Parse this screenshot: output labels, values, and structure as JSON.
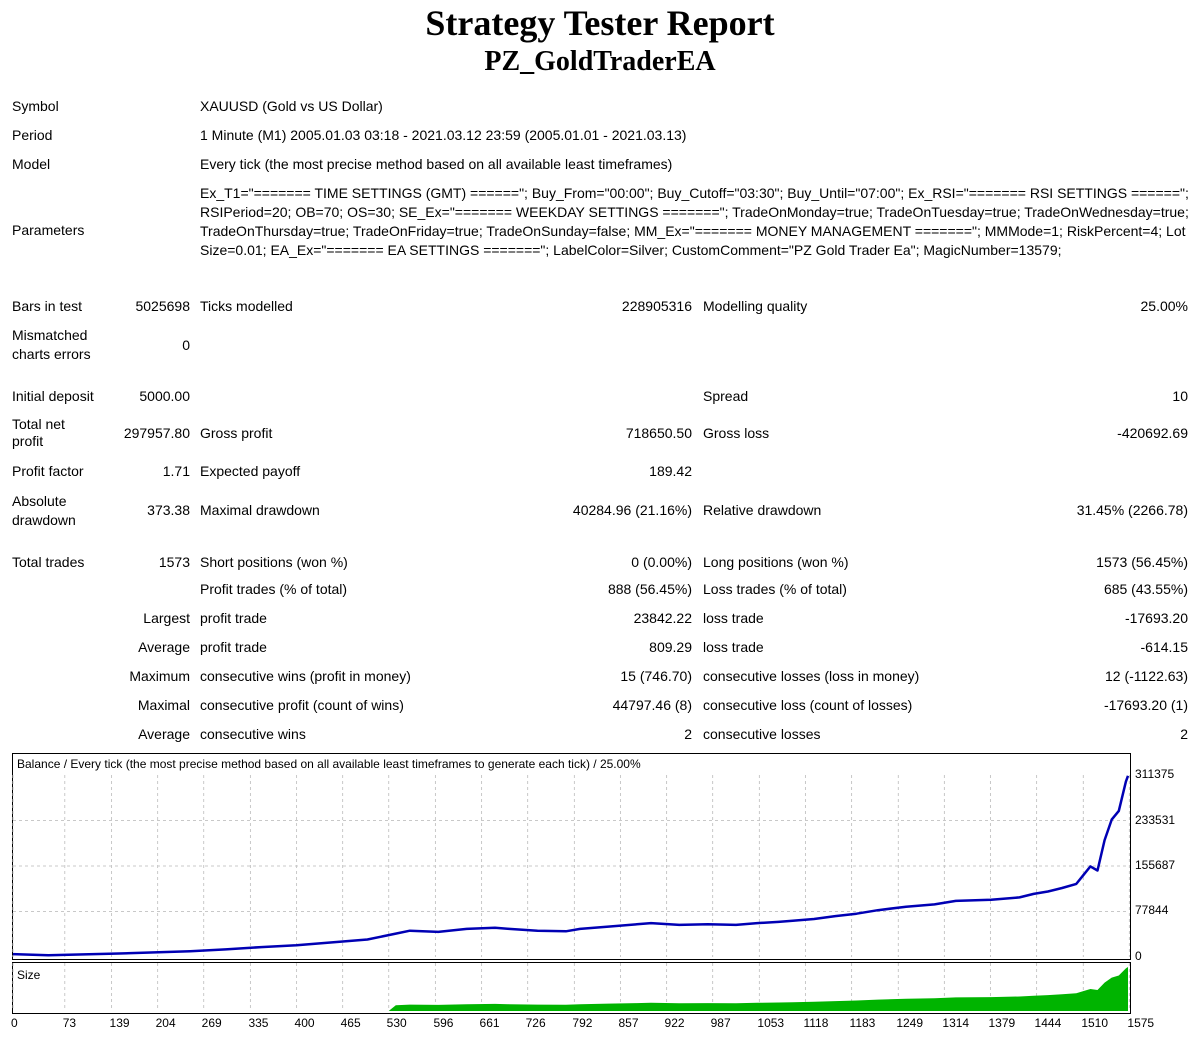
{
  "report": {
    "title": "Strategy Tester Report",
    "ea_name": "PZ_GoldTraderEA"
  },
  "settings": {
    "symbol_label": "Symbol",
    "symbol_value": "XAUUSD (Gold vs US Dollar)",
    "period_label": "Period",
    "period_value": "1 Minute (M1) 2005.01.03 03:18 - 2021.03.12 23:59 (2005.01.01 - 2021.03.13)",
    "model_label": "Model",
    "model_value": "Every tick (the most precise method based on all available least timeframes)",
    "parameters_label": "Parameters",
    "parameters_value": "Ex_T1=\"======= TIME SETTINGS (GMT) ======\"; Buy_From=\"00:00\"; Buy_Cutoff=\"03:30\"; Buy_Until=\"07:00\"; Ex_RSI=\"======= RSI SETTINGS ======\"; RSIPeriod=20; OB=70; OS=30; SE_Ex=\"======= WEEKDAY SETTINGS =======\"; TradeOnMonday=true; TradeOnTuesday=true; TradeOnWednesday=true; TradeOnThursday=true; TradeOnFriday=true; TradeOnSunday=false; MM_Ex=\"======= MONEY MANAGEMENT =======\"; MMMode=1; RiskPercent=4; LotSize=0.01; EA_Ex=\"======= EA SETTINGS =======\"; LabelColor=Silver; CustomComment=\"PZ Gold Trader Ea\"; MagicNumber=13579;"
  },
  "stats": {
    "bars_label": "Bars in test",
    "bars_value": "5025698",
    "ticks_label": "Ticks modelled",
    "ticks_value": "228905316",
    "quality_label": "Modelling quality",
    "quality_value": "25.00%",
    "mismatch_label": "Mismatched charts errors",
    "mismatch_value": "0",
    "deposit_label": "Initial deposit",
    "deposit_value": "5000.00",
    "spread_label": "Spread",
    "spread_value": "10",
    "netprofit_label": "Total net profit",
    "netprofit_value": "297957.80",
    "grossprofit_label": "Gross profit",
    "grossprofit_value": "718650.50",
    "grossloss_label": "Gross loss",
    "grossloss_value": "-420692.69",
    "pf_label": "Profit factor",
    "pf_value": "1.71",
    "payoff_label": "Expected payoff",
    "payoff_value": "189.42",
    "absdd_label": "Absolute drawdown",
    "absdd_value": "373.38",
    "maxdd_label": "Maximal drawdown",
    "maxdd_value": "40284.96 (21.16%)",
    "reldd_label": "Relative drawdown",
    "reldd_value": "31.45% (2266.78)",
    "trades_label": "Total trades",
    "trades_value": "1573",
    "short_label": "Short positions (won %)",
    "short_value": "0 (0.00%)",
    "long_label": "Long positions (won %)",
    "long_value": "1573 (56.45%)",
    "ptrades_label": "Profit trades (% of total)",
    "ptrades_value": "888 (56.45%)",
    "ltrades_label": "Loss trades (% of total)",
    "ltrades_value": "685 (43.55%)",
    "largest_label": "Largest",
    "largest_profit_label": "profit trade",
    "largest_profit_value": "23842.22",
    "largest_loss_label": "loss trade",
    "largest_loss_value": "-17693.20",
    "average_label": "Average",
    "average_profit_label": "profit trade",
    "average_profit_value": "809.29",
    "average_loss_label": "loss trade",
    "average_loss_value": "-614.15",
    "maximum_label": "Maximum",
    "max_wins_label": "consecutive wins (profit in money)",
    "max_wins_value": "15 (746.70)",
    "max_losses_label": "consecutive losses (loss in money)",
    "max_losses_value": "12 (-1122.63)",
    "maximal_label": "Maximal",
    "maxl_profit_label": "consecutive profit (count of wins)",
    "maxl_profit_value": "44797.46 (8)",
    "maxl_loss_label": "consecutive loss (count of losses)",
    "maxl_loss_value": "-17693.20 (1)",
    "average2_label": "Average",
    "avg_wins_label": "consecutive wins",
    "avg_wins_value": "2",
    "avg_losses_label": "consecutive losses",
    "avg_losses_value": "2"
  },
  "chart_data": {
    "type": "line",
    "title": "Balance / Every tick (the most precise method based on all available least timeframes to generate each tick) / 25.00%",
    "y_ticks": [
      "311375",
      "233531",
      "155687",
      "77844",
      "0"
    ],
    "x_ticks": [
      "0",
      "73",
      "139",
      "204",
      "269",
      "335",
      "400",
      "465",
      "530",
      "596",
      "661",
      "726",
      "792",
      "857",
      "922",
      "987",
      "1053",
      "1118",
      "1183",
      "1249",
      "1314",
      "1379",
      "1444",
      "1510",
      "1575"
    ],
    "ylim": [
      0,
      311375
    ],
    "xlim": [
      0,
      1573
    ],
    "size_label": "Size",
    "series": [
      {
        "color": "#0000b4",
        "x": [
          0,
          50,
          150,
          250,
          300,
          350,
          400,
          450,
          500,
          540,
          560,
          600,
          640,
          680,
          700,
          740,
          780,
          800,
          840,
          880,
          900,
          940,
          980,
          1020,
          1050,
          1080,
          1100,
          1130,
          1160,
          1190,
          1220,
          1260,
          1300,
          1330,
          1380,
          1420,
          1440,
          1460,
          1480,
          1500,
          1510,
          1520,
          1530,
          1540,
          1550,
          1560,
          1570,
          1573
        ],
        "y": [
          5000,
          3000,
          6000,
          10000,
          13000,
          17000,
          20000,
          25000,
          30000,
          40000,
          45000,
          43000,
          48000,
          50000,
          48000,
          45000,
          44000,
          48000,
          52000,
          56000,
          58000,
          55000,
          56000,
          55000,
          58000,
          60000,
          62000,
          65000,
          70000,
          74000,
          80000,
          86000,
          90000,
          96000,
          98000,
          102000,
          108000,
          112000,
          118000,
          125000,
          140000,
          155000,
          148000,
          200000,
          235000,
          250000,
          300000,
          310000
        ]
      }
    ],
    "size_color": "#00b400"
  }
}
